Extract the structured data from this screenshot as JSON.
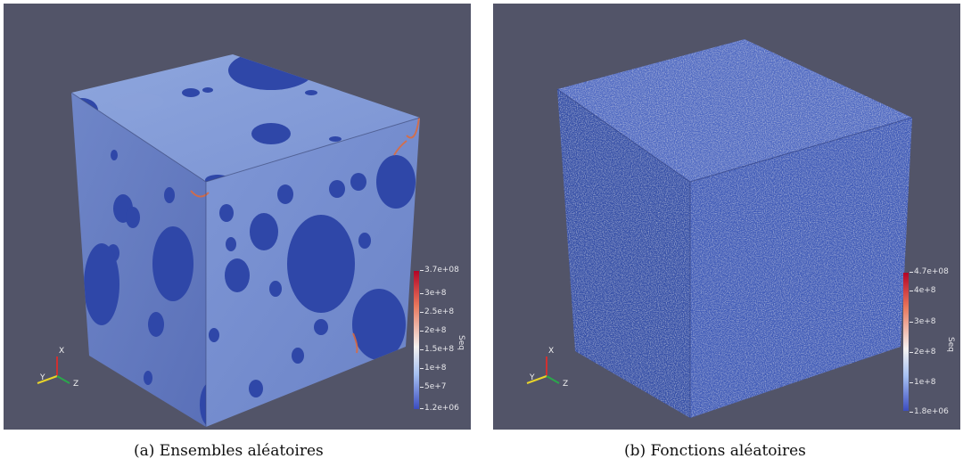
{
  "panel_a": {
    "caption": "(a)  Ensembles aléatoires",
    "colorbar": {
      "title": "Seq",
      "ticks": [
        "3.7e+08",
        "3e+8",
        "2.5e+8",
        "2e+8",
        "1.5e+8",
        "1e+8",
        "5e+7",
        "1.2e+06"
      ],
      "gradient": [
        "#b40426",
        "#e8775c",
        "#f5f2f0",
        "#a5c0f2",
        "#3b4cc0"
      ]
    },
    "axes": {
      "x": "X",
      "y": "Y",
      "z": "Z"
    }
  },
  "panel_b": {
    "caption": "(b)  Fonctions aléatoires",
    "colorbar": {
      "title": "Seq",
      "ticks": [
        "4.7e+08",
        "4e+8",
        "3e+8",
        "2e+8",
        "1e+8",
        "1.8e+06"
      ],
      "gradient": [
        "#b40426",
        "#e8775c",
        "#f5f2f0",
        "#a5c0f2",
        "#3b4cc0"
      ]
    },
    "axes": {
      "x": "X",
      "y": "Y",
      "z": "Z"
    }
  },
  "colors": {
    "background": "#525468",
    "cube_base": "#6d84c9",
    "inclusion": "#2f47a8",
    "hot": "#e06a3a"
  }
}
